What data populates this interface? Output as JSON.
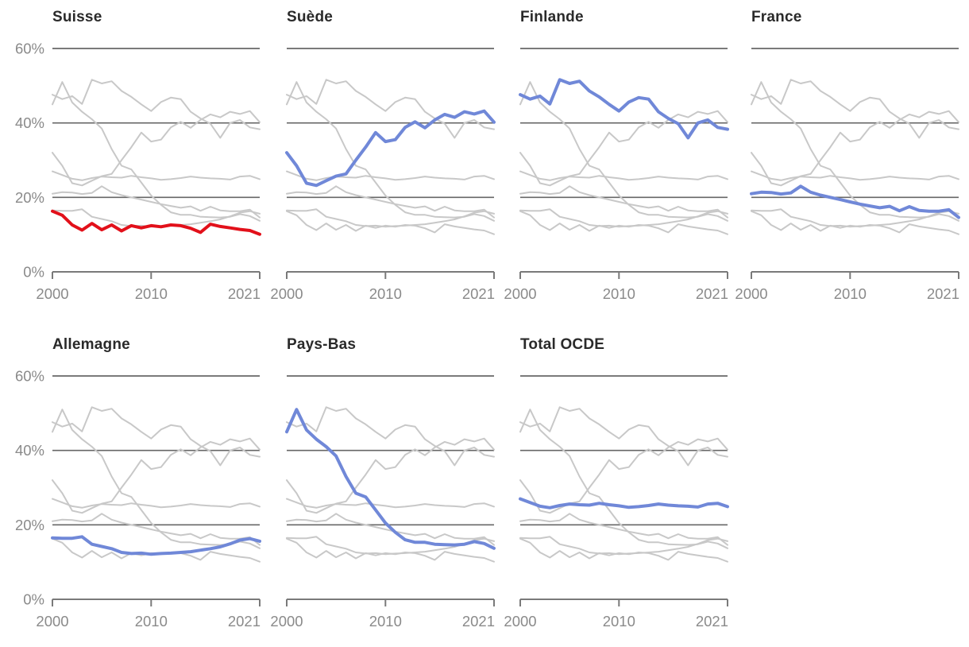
{
  "chart_data": {
    "type": "line",
    "layout": "small-multiples",
    "unit": "%",
    "x": [
      2000,
      2001,
      2002,
      2003,
      2004,
      2005,
      2006,
      2007,
      2008,
      2009,
      2010,
      2011,
      2012,
      2013,
      2014,
      2015,
      2016,
      2017,
      2018,
      2019,
      2020,
      2021
    ],
    "x_ticks": [
      2000,
      2010,
      2021
    ],
    "x_tick_labels": [
      "2000",
      "2010",
      "2021"
    ],
    "y_ticks": [
      0,
      20,
      40,
      60
    ],
    "y_tick_labels": [
      "0%",
      "20%",
      "40%",
      "60%"
    ],
    "ylim": [
      0,
      60
    ],
    "grid": "horizontal",
    "series": [
      {
        "name": "Suisse",
        "values": [
          16.3,
          15.2,
          12.6,
          11.2,
          13.0,
          11.3,
          12.6,
          11.0,
          12.4,
          11.8,
          12.4,
          12.1,
          12.6,
          12.4,
          11.7,
          10.6,
          12.8,
          12.2,
          11.8,
          11.4,
          11.1,
          10.1
        ]
      },
      {
        "name": "Suède",
        "values": [
          32.0,
          28.5,
          23.8,
          23.2,
          24.5,
          25.7,
          26.3,
          30.0,
          33.5,
          37.4,
          35.0,
          35.5,
          38.8,
          40.3,
          38.7,
          40.8,
          42.3,
          41.5,
          43.0,
          42.4,
          43.2,
          40.2
        ]
      },
      {
        "name": "Finlande",
        "values": [
          47.6,
          46.4,
          47.2,
          45.1,
          51.6,
          50.6,
          51.2,
          48.6,
          47.0,
          45.0,
          43.2,
          45.6,
          46.8,
          46.4,
          43.0,
          41.2,
          39.8,
          36.0,
          40.0,
          40.8,
          38.8,
          38.3
        ]
      },
      {
        "name": "France",
        "values": [
          21.0,
          21.4,
          21.3,
          20.9,
          21.2,
          23.0,
          21.4,
          20.6,
          20.0,
          19.4,
          18.8,
          18.2,
          17.7,
          17.2,
          17.6,
          16.4,
          17.5,
          16.5,
          16.3,
          16.3,
          16.7,
          14.6
        ]
      },
      {
        "name": "Allemagne",
        "values": [
          16.5,
          16.4,
          16.4,
          16.8,
          14.8,
          14.2,
          13.6,
          12.6,
          12.3,
          12.4,
          12.1,
          12.3,
          12.4,
          12.6,
          12.8,
          13.2,
          13.6,
          14.1,
          14.9,
          15.9,
          16.3,
          15.6
        ]
      },
      {
        "name": "Pays-Bas",
        "values": [
          45.0,
          51.0,
          45.5,
          43.0,
          41.0,
          38.5,
          33.0,
          28.5,
          27.5,
          24.0,
          20.5,
          18.0,
          16.0,
          15.3,
          15.3,
          14.8,
          14.7,
          14.6,
          14.8,
          15.5,
          15.0,
          13.7
        ]
      },
      {
        "name": "Total OCDE",
        "values": [
          27.0,
          26.0,
          25.0,
          24.6,
          25.2,
          25.6,
          25.4,
          25.3,
          25.8,
          25.4,
          25.1,
          24.7,
          24.9,
          25.2,
          25.6,
          25.3,
          25.1,
          25.0,
          24.8,
          25.6,
          25.8,
          24.9
        ]
      }
    ],
    "panels": [
      {
        "title": "Suisse",
        "highlight": "Suisse",
        "highlight_color": "#e2101a",
        "show_y_labels": true
      },
      {
        "title": "Suède",
        "highlight": "Suède",
        "highlight_color": "#7088d8",
        "show_y_labels": false
      },
      {
        "title": "Finlande",
        "highlight": "Finlande",
        "highlight_color": "#7088d8",
        "show_y_labels": false
      },
      {
        "title": "France",
        "highlight": "France",
        "highlight_color": "#7088d8",
        "show_y_labels": false
      },
      {
        "title": "Allemagne",
        "highlight": "Allemagne",
        "highlight_color": "#7088d8",
        "show_y_labels": true
      },
      {
        "title": "Pays-Bas",
        "highlight": "Pays-Bas",
        "highlight_color": "#7088d8",
        "show_y_labels": false
      },
      {
        "title": "Total OCDE",
        "highlight": "Total OCDE",
        "highlight_color": "#7088d8",
        "show_y_labels": false
      }
    ],
    "colors": {
      "highlight_red": "#e2101a",
      "highlight_blue": "#7088d8",
      "context_line": "#c8c8c8",
      "grid_line": "#676767",
      "axis_line": "#7a7a7a",
      "tick_label": "#8a8a8a",
      "title": "#2a2a2a",
      "background": "#ffffff"
    }
  }
}
